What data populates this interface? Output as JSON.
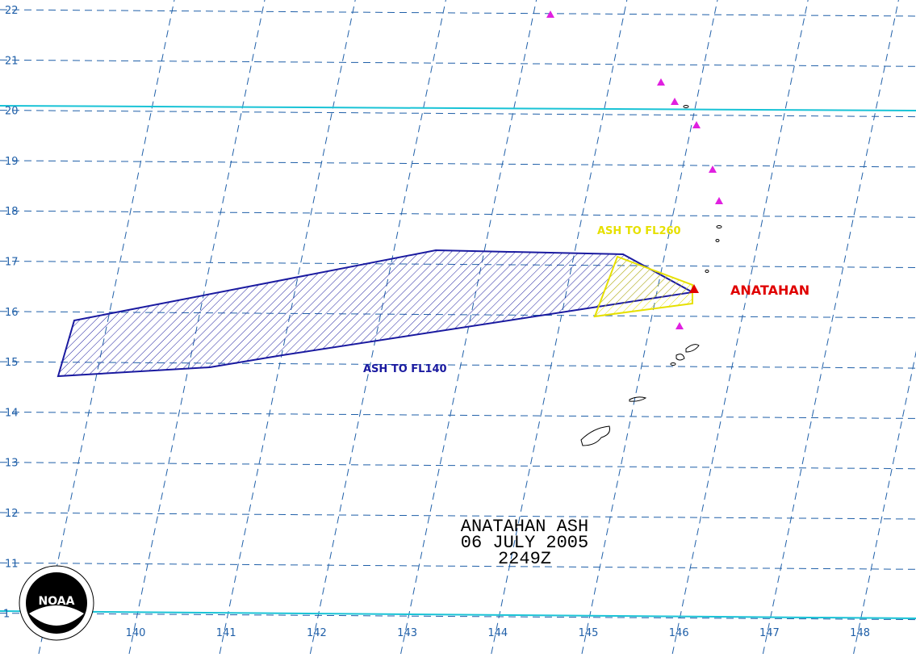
{
  "map": {
    "lat_labels": [
      "22",
      "21",
      "20",
      "19",
      "18",
      "17",
      "16",
      "15",
      "14",
      "13",
      "12",
      "11",
      "1"
    ],
    "lon_labels": [
      "140",
      "141",
      "142",
      "143",
      "144",
      "145",
      "146",
      "147",
      "148"
    ],
    "annotations": {
      "upper_ash": "ASH TO FL260",
      "lower_ash": "ASH TO FL140",
      "volcano": "ANATAHAN"
    },
    "title": {
      "line1": "ANATAHAN ASH",
      "line2": "06 JULY 2005",
      "line3": "2249Z"
    },
    "logo": {
      "text": "NOAA"
    }
  }
}
